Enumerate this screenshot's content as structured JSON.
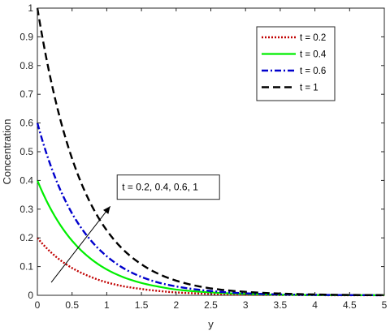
{
  "chart_data": {
    "type": "line",
    "title": "",
    "xlabel": "y",
    "ylabel": "Concentration",
    "xlim": [
      0,
      5
    ],
    "ylim": [
      0,
      1
    ],
    "xticks": [
      "0",
      "0.5",
      "1",
      "1.5",
      "2",
      "2.5",
      "3",
      "3.5",
      "4",
      "4.5",
      "5"
    ],
    "yticks": [
      "0",
      "0.1",
      "0.2",
      "0.3",
      "0.4",
      "0.5",
      "0.6",
      "0.7",
      "0.8",
      "0.9",
      "1"
    ],
    "grid": false,
    "legend_position": "top-right",
    "x": [
      0,
      0.25,
      0.5,
      0.75,
      1,
      1.25,
      1.5,
      1.75,
      2,
      2.5,
      3,
      3.5,
      4,
      4.5,
      5
    ],
    "series": [
      {
        "name": "t = 0.2",
        "color": "#c00000",
        "style": "dotted",
        "values": [
          0.2,
          0.138,
          0.095,
          0.066,
          0.045,
          0.031,
          0.022,
          0.015,
          0.01,
          0.005,
          0.002,
          0.001,
          0.0005,
          0.0002,
          0.0001
        ]
      },
      {
        "name": "t = 0.4",
        "color": "#00ee00",
        "style": "solid",
        "values": [
          0.4,
          0.276,
          0.19,
          0.131,
          0.09,
          0.062,
          0.043,
          0.03,
          0.02,
          0.01,
          0.005,
          0.002,
          0.001,
          0.0005,
          0.0002
        ]
      },
      {
        "name": "t = 0.6",
        "color": "#0000cc",
        "style": "dashdot",
        "values": [
          0.6,
          0.414,
          0.285,
          0.197,
          0.136,
          0.093,
          0.064,
          0.044,
          0.031,
          0.015,
          0.007,
          0.003,
          0.0015,
          0.0007,
          0.0003
        ]
      },
      {
        "name": "t = 1",
        "color": "#000000",
        "style": "dashed",
        "values": [
          1.0,
          0.69,
          0.476,
          0.328,
          0.226,
          0.156,
          0.108,
          0.074,
          0.051,
          0.024,
          0.012,
          0.006,
          0.003,
          0.0012,
          0.0006
        ]
      }
    ],
    "annotation": {
      "text": "t = 0.2, 0.4, 0.6, 1",
      "arrow_from": [
        0.2,
        0.045
      ],
      "arrow_to": [
        1.05,
        0.31
      ],
      "box_anchor": [
        1.15,
        0.385
      ]
    }
  }
}
